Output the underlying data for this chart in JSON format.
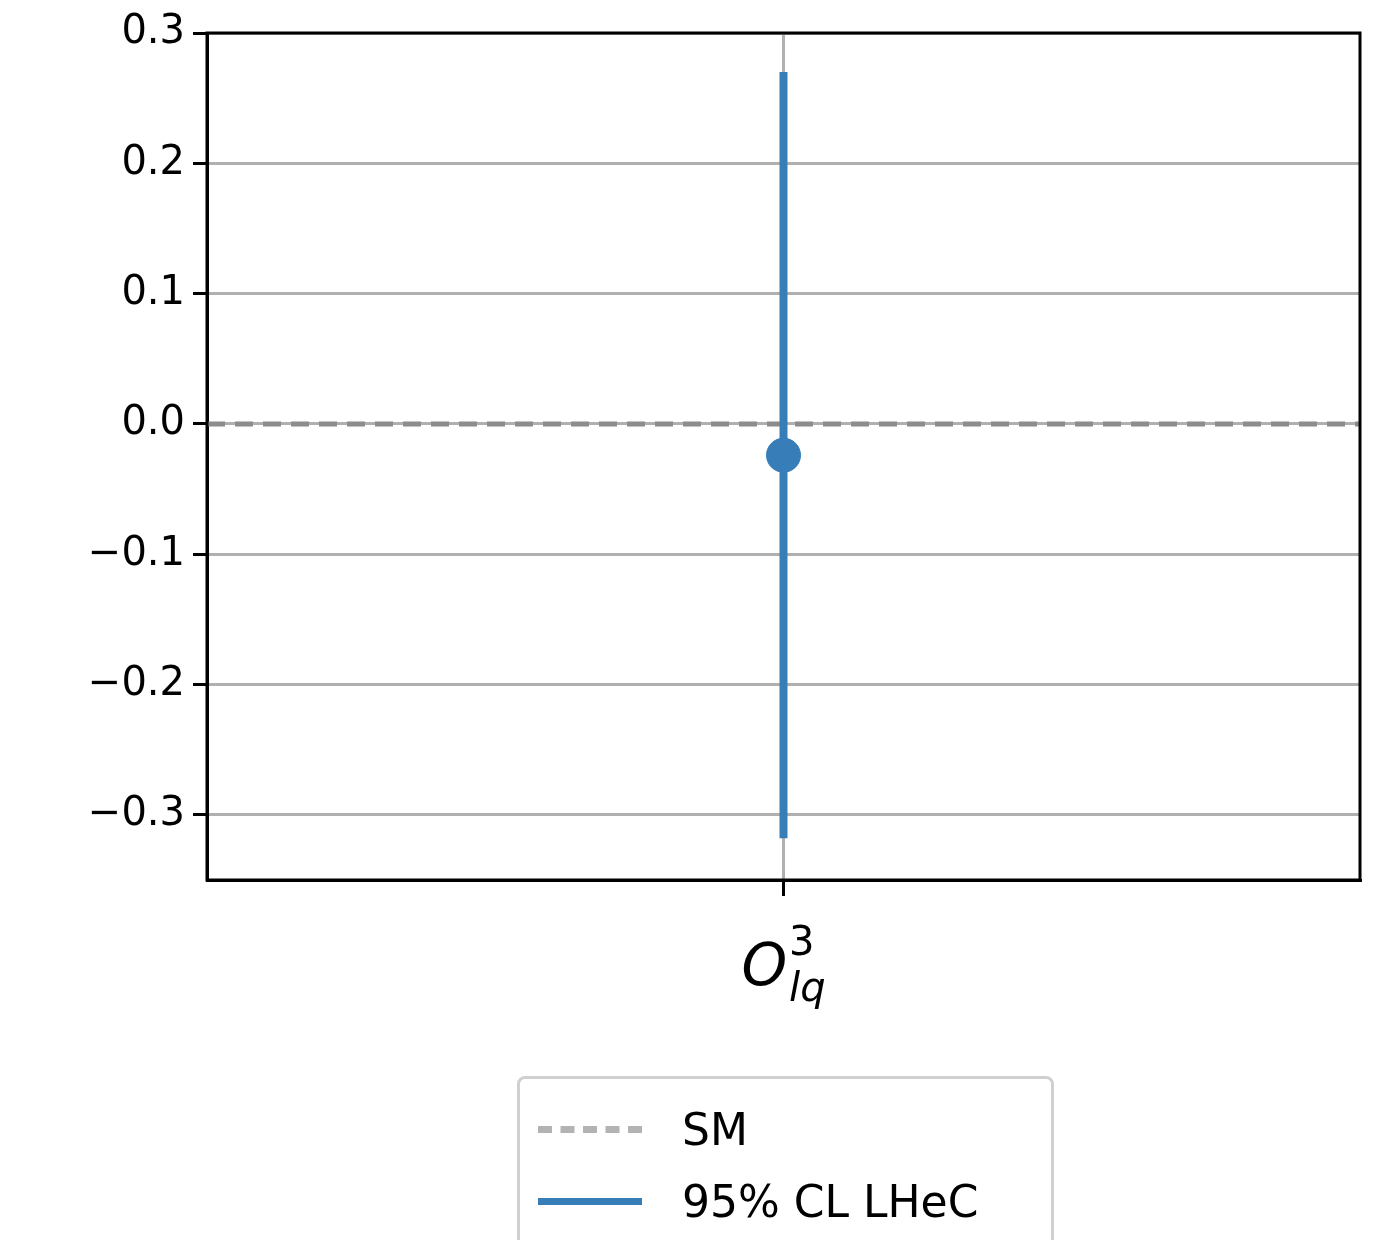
{
  "chart_data": {
    "type": "scatter",
    "categories": [
      "O$^{3}$$_{lq}$"
    ],
    "series": [
      {
        "name": "95% CL LHeC",
        "color": "#377eb8",
        "values": [
          -0.024
        ],
        "errors": [
          [
            -0.318,
            0.27
          ]
        ]
      }
    ],
    "ref_lines": [
      {
        "axis": "y",
        "value": 0,
        "label": "SM",
        "color": "#8c8c8c",
        "line_style": "dashed"
      }
    ],
    "ylim": [
      -0.35,
      0.3
    ],
    "yticks": [
      {
        "value": -0.3,
        "label": "−0.3"
      },
      {
        "value": -0.2,
        "label": "−0.2"
      },
      {
        "value": -0.1,
        "label": "−0.1"
      },
      {
        "value": 0,
        "label": "0.0"
      },
      {
        "value": 0.1,
        "label": "0.1"
      },
      {
        "value": 0.2,
        "label": "0.2"
      },
      {
        "value": 0.3,
        "label": "0.3"
      }
    ],
    "grid": true,
    "legend": "bottom",
    "marker": "circle"
  }
}
